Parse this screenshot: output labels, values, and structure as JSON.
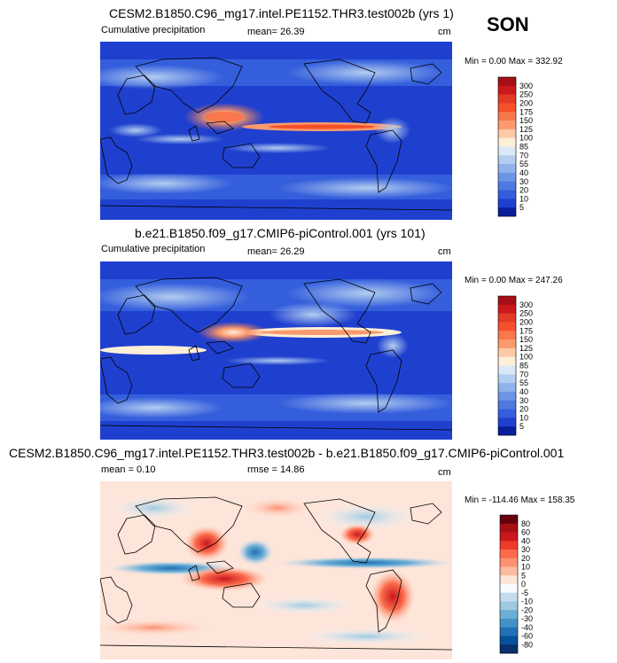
{
  "season": "SON",
  "panels": [
    {
      "title": "CESM2.B1850.C96_mg17.intel.PE1152.THR3.test002b (yrs 1)",
      "left_label": "Cumulative precipitation",
      "mid_label": "mean=  26.39",
      "units": "cm",
      "minmax": "Min =   0.00 Max = 332.92",
      "levels": [
        "300",
        "250",
        "200",
        "175",
        "150",
        "125",
        "100",
        "85",
        "70",
        "55",
        "40",
        "30",
        "20",
        "10",
        "5"
      ],
      "colors": [
        "#a50f15",
        "#cb181d",
        "#e23a25",
        "#f4502a",
        "#f8784b",
        "#fb9a6e",
        "#fdc9a6",
        "#fdefd7",
        "#dbe8f7",
        "#b2cdf0",
        "#8fb2ea",
        "#6d95e5",
        "#4e79df",
        "#345edc",
        "#1f40cf",
        "#0b1e9a"
      ]
    },
    {
      "title": "b.e21.B1850.f09_g17.CMIP6-piControl.001 (yrs 101)",
      "left_label": "Cumulative precipitation",
      "mid_label": "mean=  26.29",
      "units": "cm",
      "minmax": "Min =   0.00 Max = 247.26",
      "levels": [
        "300",
        "250",
        "200",
        "175",
        "150",
        "125",
        "100",
        "85",
        "70",
        "55",
        "40",
        "30",
        "20",
        "10",
        "5"
      ],
      "colors": [
        "#a50f15",
        "#cb181d",
        "#e23a25",
        "#f4502a",
        "#f8784b",
        "#fb9a6e",
        "#fdc9a6",
        "#fdefd7",
        "#dbe8f7",
        "#b2cdf0",
        "#8fb2ea",
        "#6d95e5",
        "#4e79df",
        "#345edc",
        "#1f40cf",
        "#0b1e9a"
      ]
    },
    {
      "title": "CESM2.B1850.C96_mg17.intel.PE1152.THR3.test002b - b.e21.B1850.f09_g17.CMIP6-piControl.001",
      "left_label": "mean =   0.10",
      "mid_label": "rmse =  14.86",
      "units": "cm",
      "minmax": "Min = -114.46 Max = 158.35",
      "levels": [
        "80",
        "60",
        "40",
        "30",
        "20",
        "10",
        "5",
        "0",
        "-5",
        "-10",
        "-20",
        "-30",
        "-40",
        "-60",
        "-80"
      ],
      "colors": [
        "#67000d",
        "#a50f15",
        "#cb181d",
        "#ef3b2c",
        "#fb6a4a",
        "#fc9272",
        "#fcbba1",
        "#fee5d9",
        "#f7fbff",
        "#c6dbef",
        "#9ecae1",
        "#6baed6",
        "#4292c6",
        "#2171b5",
        "#08519c",
        "#08306b"
      ]
    }
  ]
}
